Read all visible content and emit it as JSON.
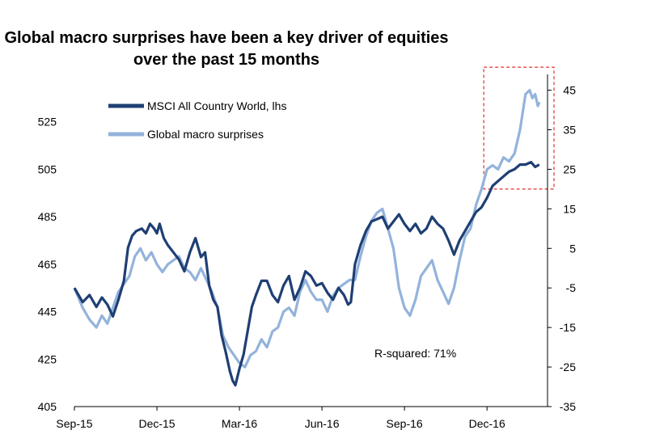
{
  "chart_data": {
    "type": "line",
    "title_line1": "Global macro surprises have been a key driver of equities",
    "title_line2": "over the past 15 months",
    "x_ticks": [
      "Sep-15",
      "Dec-15",
      "Mar-16",
      "Jun-16",
      "Sep-16",
      "Dec-16"
    ],
    "x_range": [
      0,
      17.2
    ],
    "y_left": {
      "ticks": [
        405,
        425,
        445,
        465,
        485,
        505,
        525
      ],
      "ylim": [
        405,
        545
      ]
    },
    "y_right": {
      "ticks": [
        -35,
        -25,
        -15,
        -5,
        5,
        15,
        25,
        35,
        45
      ],
      "ylim": [
        -35,
        49
      ]
    },
    "annotation": "R-squared: 71%",
    "legend_position": "top-left",
    "highlight_box": {
      "x": [
        15.0,
        17.2
      ],
      "y_right": [
        20,
        50
      ],
      "color": "#e0312f"
    },
    "series": [
      {
        "name": "MSCI All Country World, lhs",
        "axis": "left",
        "color": "#1f3f73",
        "x": [
          0.0,
          0.3,
          0.55,
          0.8,
          1.0,
          1.2,
          1.4,
          1.6,
          1.8,
          1.95,
          2.1,
          2.25,
          2.45,
          2.6,
          2.75,
          2.9,
          3.0,
          3.1,
          3.25,
          3.4,
          3.6,
          3.8,
          4.0,
          4.2,
          4.4,
          4.6,
          4.75,
          4.9,
          5.05,
          5.2,
          5.35,
          5.5,
          5.65,
          5.75,
          5.85,
          6.0,
          6.15,
          6.3,
          6.45,
          6.6,
          6.8,
          7.0,
          7.2,
          7.4,
          7.6,
          7.8,
          8.0,
          8.2,
          8.4,
          8.6,
          8.8,
          9.0,
          9.2,
          9.4,
          9.6,
          9.8,
          9.95,
          10.05,
          10.2,
          10.4,
          10.6,
          10.8,
          11.0,
          11.2,
          11.4,
          11.6,
          11.8,
          12.0,
          12.2,
          12.4,
          12.6,
          12.8,
          13.0,
          13.2,
          13.4,
          13.6,
          13.8,
          14.0,
          14.2,
          14.4,
          14.6,
          14.8,
          15.0,
          15.2,
          15.4,
          15.6,
          15.8,
          16.0,
          16.2,
          16.4,
          16.6,
          16.75,
          16.9
        ],
        "values": [
          455,
          449,
          452,
          447,
          451,
          448,
          443,
          450,
          458,
          472,
          477,
          479,
          480,
          478,
          482,
          480,
          478,
          482,
          476,
          473,
          470,
          467,
          462,
          470,
          476,
          468,
          470,
          456,
          450,
          447,
          435,
          428,
          420,
          416,
          414,
          421,
          427,
          437,
          447,
          452,
          458,
          458,
          452,
          449,
          456,
          460,
          450,
          455,
          462,
          460,
          456,
          457,
          453,
          450,
          455,
          452,
          448,
          449,
          465,
          473,
          479,
          483,
          484,
          485,
          480,
          483,
          486,
          482,
          479,
          482,
          478,
          480,
          485,
          482,
          480,
          475,
          469,
          475,
          479,
          483,
          487,
          489,
          493,
          498,
          500,
          502,
          504,
          505,
          507,
          507,
          508,
          506,
          507
        ]
      },
      {
        "name": "Global macro surprises",
        "axis": "right",
        "color": "#93b3db",
        "x": [
          0.0,
          0.3,
          0.55,
          0.8,
          1.0,
          1.2,
          1.4,
          1.6,
          1.8,
          2.0,
          2.2,
          2.4,
          2.6,
          2.8,
          3.0,
          3.2,
          3.4,
          3.6,
          3.8,
          4.0,
          4.2,
          4.4,
          4.6,
          4.8,
          5.0,
          5.2,
          5.4,
          5.6,
          5.8,
          6.0,
          6.2,
          6.4,
          6.6,
          6.8,
          7.0,
          7.2,
          7.4,
          7.6,
          7.8,
          8.0,
          8.2,
          8.4,
          8.6,
          8.8,
          9.0,
          9.2,
          9.4,
          9.6,
          9.8,
          10.0,
          10.2,
          10.4,
          10.6,
          10.8,
          11.0,
          11.2,
          11.4,
          11.6,
          11.8,
          12.0,
          12.2,
          12.4,
          12.6,
          12.8,
          13.0,
          13.2,
          13.4,
          13.6,
          13.8,
          14.0,
          14.2,
          14.4,
          14.6,
          14.8,
          15.0,
          15.2,
          15.4,
          15.6,
          15.8,
          16.0,
          16.2,
          16.4,
          16.55,
          16.65,
          16.75,
          16.85,
          16.9
        ],
        "values": [
          -5,
          -10,
          -13,
          -15,
          -12,
          -14,
          -10,
          -6,
          -4,
          -2,
          3,
          5,
          2,
          4,
          1,
          -1,
          1,
          2,
          3,
          0,
          -1,
          -3,
          0,
          -3,
          -6,
          -10,
          -17,
          -20,
          -22,
          -24,
          -25,
          -22,
          -21,
          -18,
          -20,
          -16,
          -15,
          -11,
          -10,
          -12,
          -6,
          -3,
          -6,
          -8,
          -8,
          -11,
          -7,
          -5,
          -4,
          -3,
          -3,
          3,
          8,
          12,
          14,
          15,
          10,
          5,
          -5,
          -10,
          -12,
          -8,
          -2,
          0,
          2,
          -3,
          -6,
          -9,
          -5,
          2,
          8,
          10,
          16,
          20,
          25,
          26,
          25,
          28,
          27,
          29,
          35,
          44,
          45,
          43,
          44,
          41,
          42
        ]
      }
    ]
  }
}
